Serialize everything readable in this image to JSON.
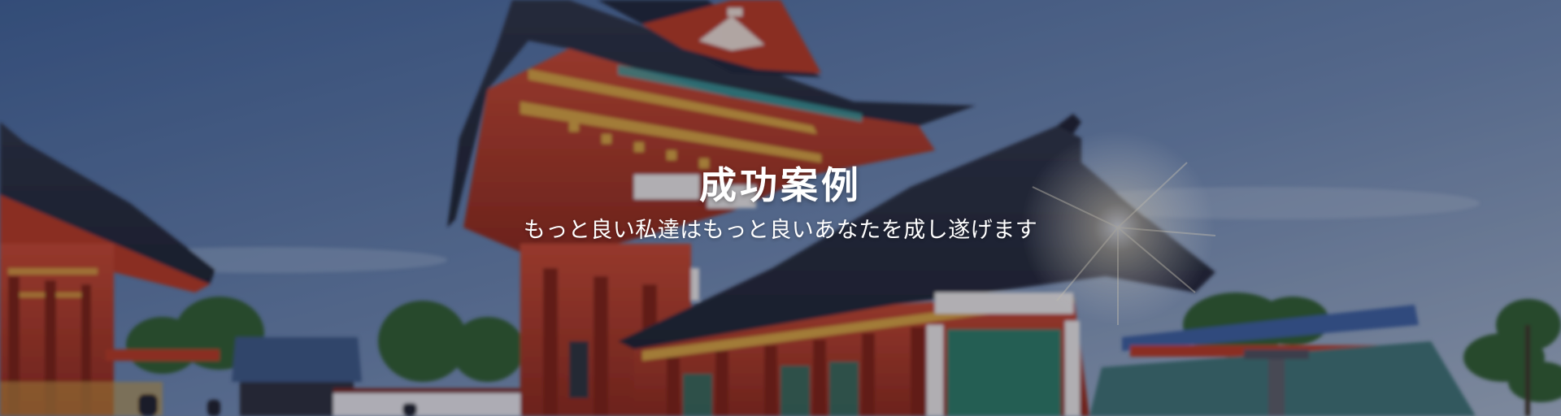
{
  "hero": {
    "title": "成功案例",
    "subtitle": "もっと良い私達はもっと良いあなたを成し遂げます",
    "background": "shrine-photo",
    "colors": {
      "sky_top": "#4f6f9f",
      "sky_right": "#8ea0bc",
      "shrine_red": "#b8351f",
      "roof_dark": "#2a2d3a",
      "text": "#ffffff"
    }
  }
}
